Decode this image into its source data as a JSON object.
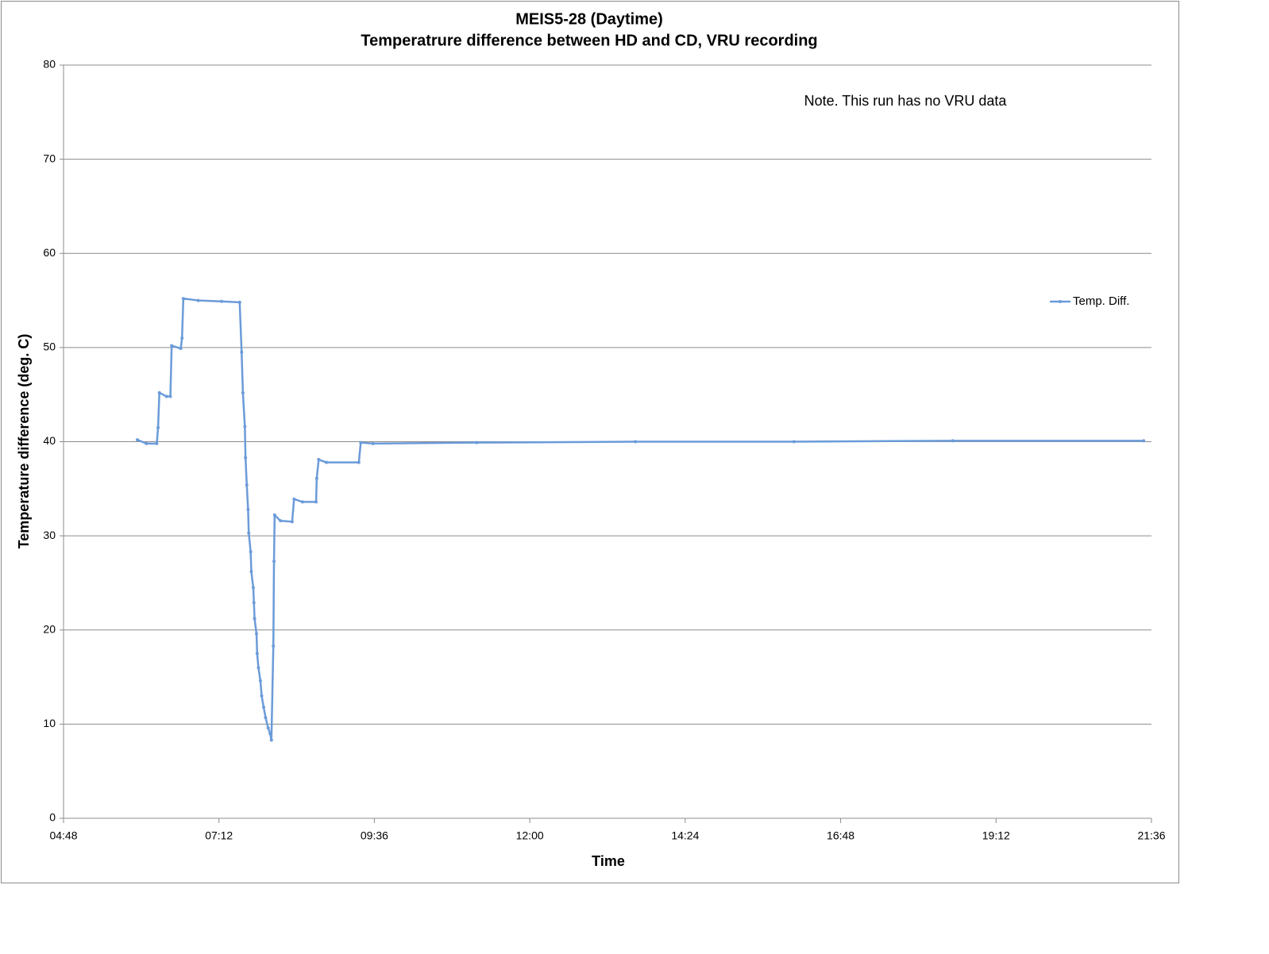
{
  "chart_data": {
    "type": "line",
    "title": "MEIS5-28 (Daytime)",
    "subtitle": "Temperatrure difference between HD and CD, VRU recording",
    "x_label": "Time",
    "y_label": "Temperature difference (deg. C)",
    "annotation": "Note. This run has no VRU data",
    "x": [
      5.94,
      6.08,
      6.24,
      6.26,
      6.28,
      6.39,
      6.45,
      6.47,
      6.61,
      6.63,
      6.65,
      6.88,
      7.24,
      7.52,
      7.55,
      7.57,
      7.6,
      7.61,
      7.63,
      7.65,
      7.66,
      7.69,
      7.7,
      7.73,
      7.74,
      7.75,
      7.78,
      7.79,
      7.81,
      7.84,
      7.86,
      7.89,
      7.92,
      7.96,
      7.99,
      8.01,
      8.04,
      8.05,
      8.06,
      8.15,
      8.33,
      8.36,
      8.49,
      8.7,
      8.71,
      8.74,
      8.86,
      9.36,
      9.39,
      9.58,
      11.18,
      13.63,
      16.08,
      18.53,
      21.48
    ],
    "series": [
      {
        "name": "Temp. Diff.",
        "color": "#6b9bd9",
        "values": [
          40.2,
          39.8,
          39.8,
          41.5,
          45.2,
          44.8,
          44.8,
          50.2,
          49.9,
          51,
          55.2,
          55.0,
          54.9,
          54.8,
          49.5,
          45.2,
          41.6,
          38.3,
          35.4,
          32.8,
          30.3,
          28.3,
          26.2,
          24.5,
          22.9,
          21.2,
          19.6,
          17.5,
          16.0,
          14.6,
          13.0,
          11.8,
          10.7,
          9.6,
          9.0,
          8.3,
          18.3,
          27.3,
          32.2,
          31.6,
          31.5,
          33.9,
          33.6,
          33.6,
          36.1,
          38.1,
          37.8,
          37.8,
          39.9,
          39.8,
          39.9,
          40.0,
          40.0,
          40.1,
          40.1
        ]
      }
    ],
    "xlim": [
      4.8,
      21.6
    ],
    "xticks": [
      {
        "value": 4.8,
        "label": "04:48"
      },
      {
        "value": 7.2,
        "label": "07:12"
      },
      {
        "value": 9.6,
        "label": "09:36"
      },
      {
        "value": 12,
        "label": "12:00"
      },
      {
        "value": 14.4,
        "label": "14:24"
      },
      {
        "value": 16.8,
        "label": "16:48"
      },
      {
        "value": 19.2,
        "label": "19:12"
      },
      {
        "value": 21.6,
        "label": "21:36"
      }
    ],
    "ylim": [
      0,
      80
    ],
    "yticks": [
      0,
      10,
      20,
      30,
      40,
      50,
      60,
      70,
      80
    ],
    "grid": true,
    "legend": "right"
  }
}
